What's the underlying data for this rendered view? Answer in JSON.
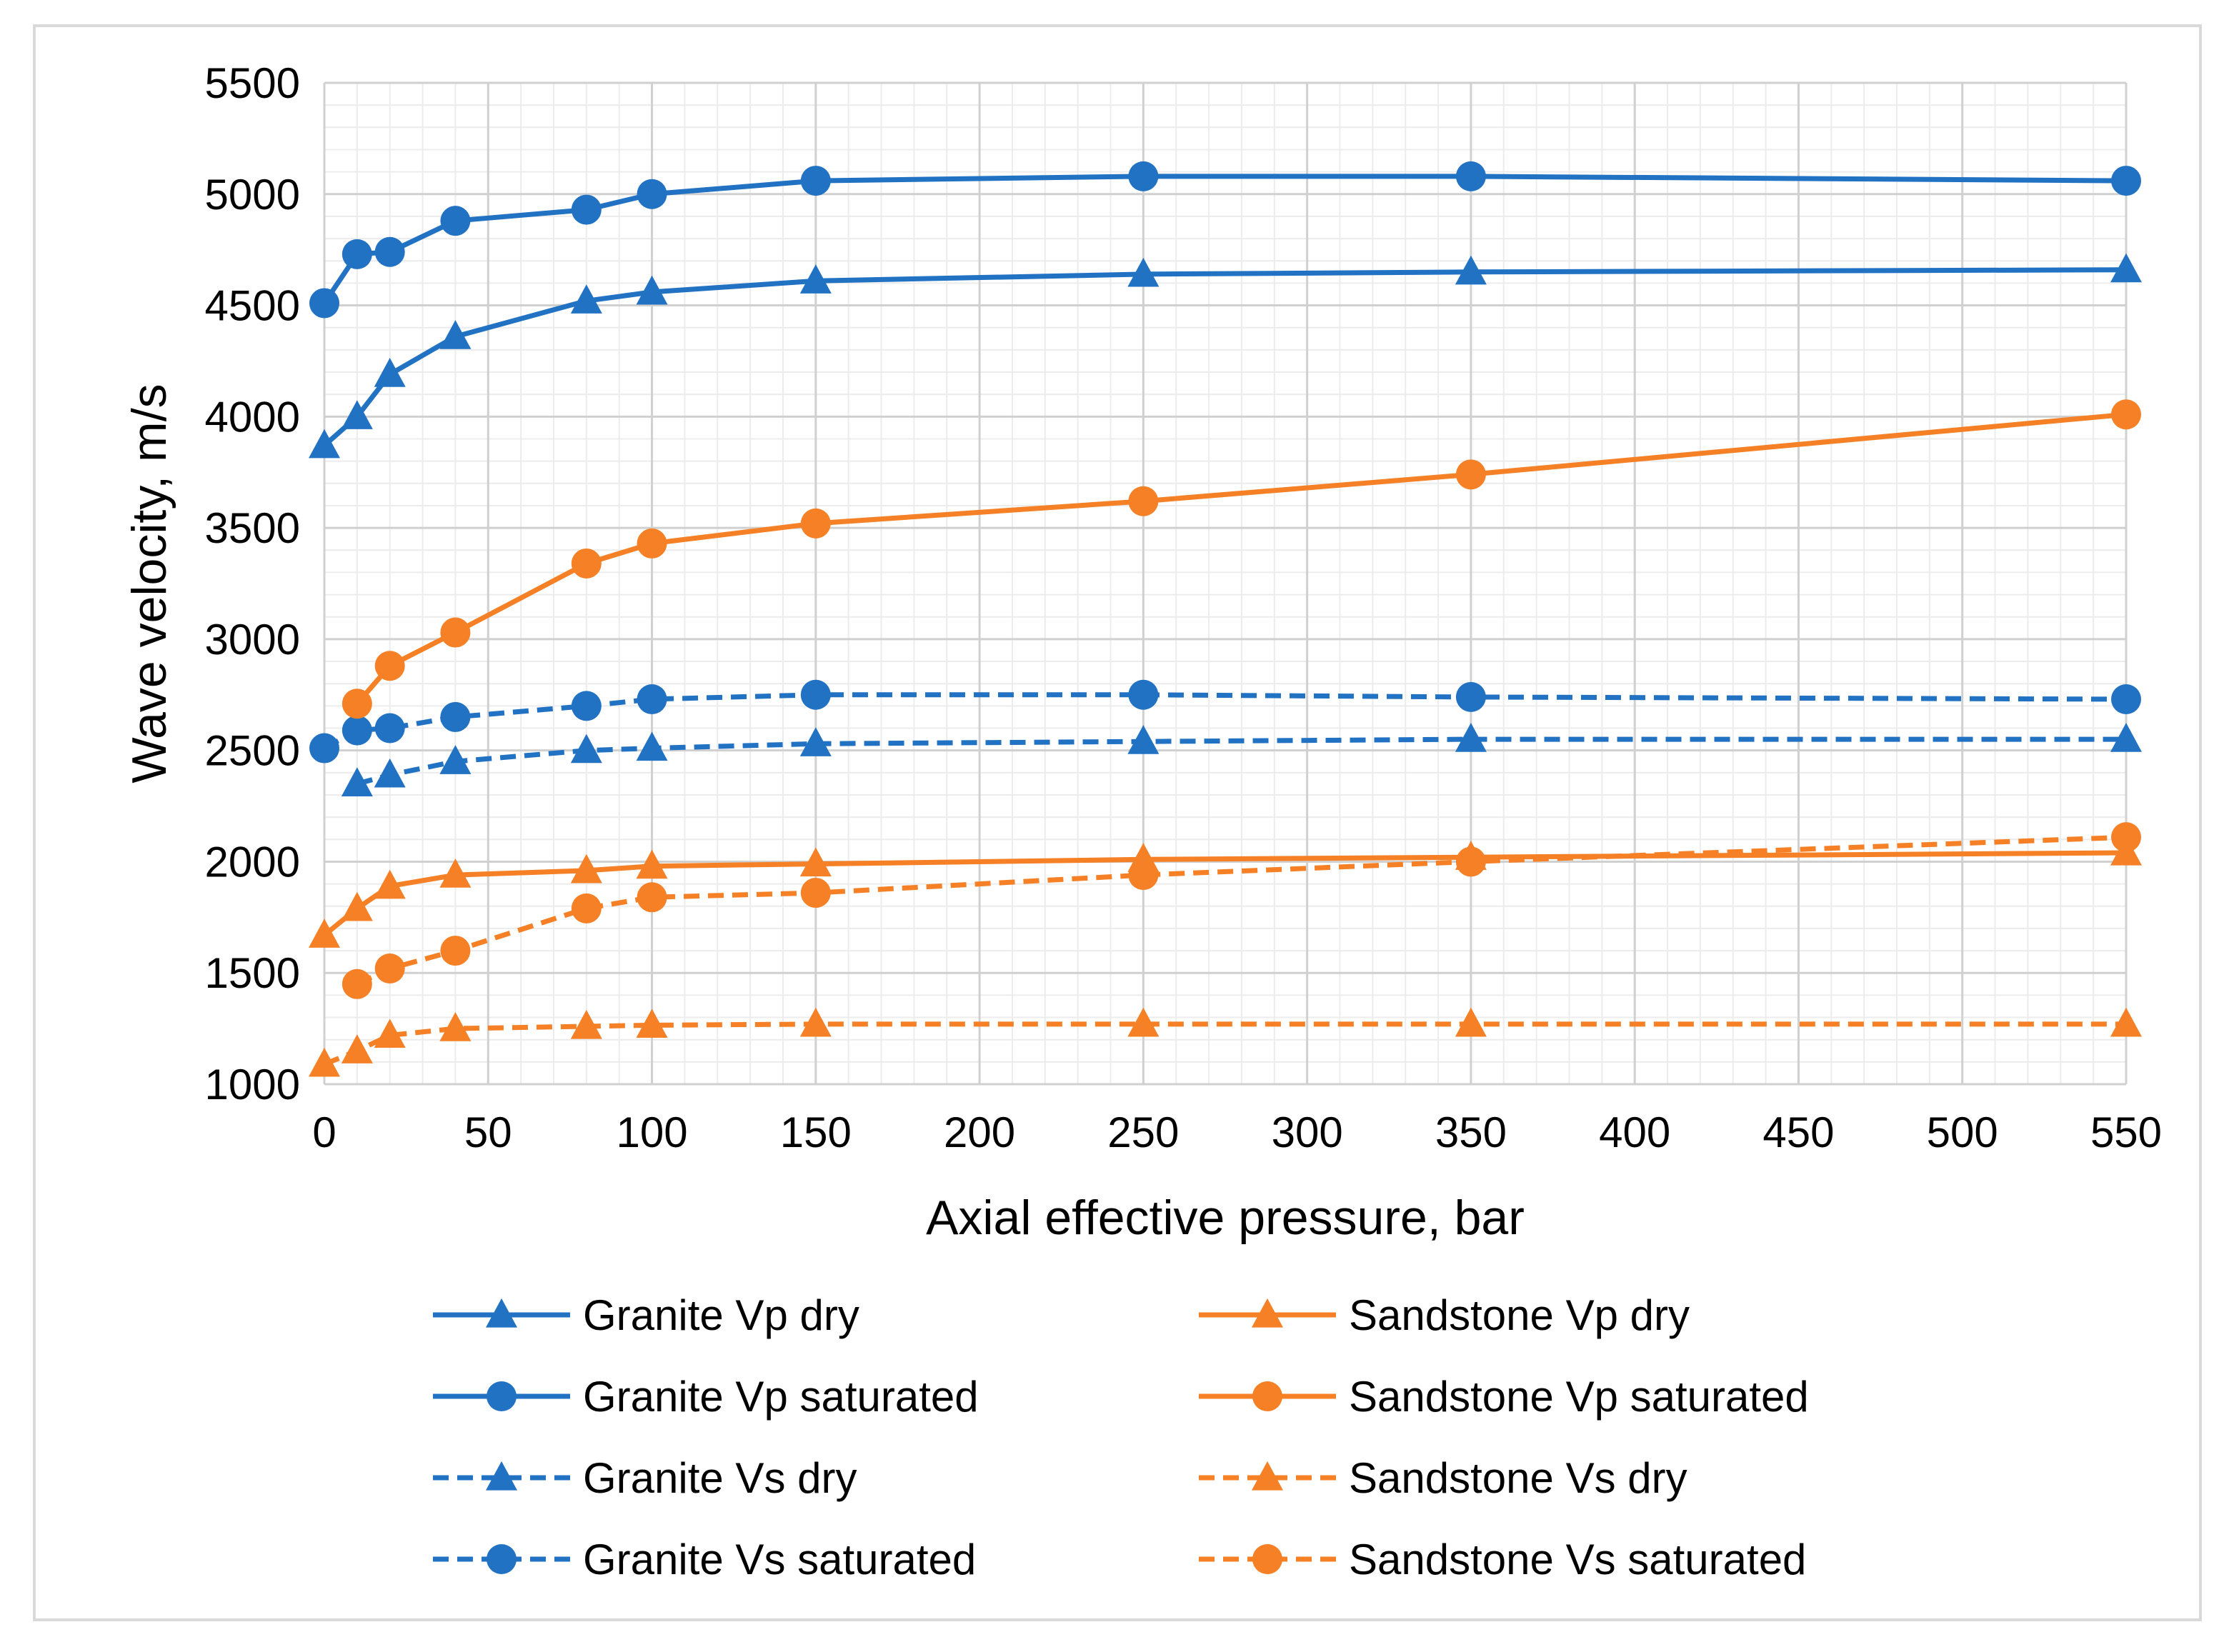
{
  "chart_data": {
    "type": "line",
    "title": "",
    "xlabel": "Axial effective pressure, bar",
    "ylabel": "Wave velocity, m/s",
    "xlim": [
      0,
      550
    ],
    "ylim": [
      1000,
      5500
    ],
    "x_ticks": [
      0,
      50,
      100,
      150,
      200,
      250,
      300,
      350,
      400,
      450,
      500,
      550
    ],
    "y_ticks": [
      1000,
      1500,
      2000,
      2500,
      3000,
      3500,
      4000,
      4500,
      5000,
      5500
    ],
    "grid": true,
    "legend_position": "bottom",
    "series": [
      {
        "name": "Granite Vp dry",
        "color": "#2272C4",
        "marker": "triangle",
        "dash": "solid",
        "points": [
          [
            0,
            3870
          ],
          [
            10,
            4000
          ],
          [
            20,
            4190
          ],
          [
            40,
            4360
          ],
          [
            80,
            4520
          ],
          [
            100,
            4560
          ],
          [
            150,
            4610
          ],
          [
            250,
            4640
          ],
          [
            350,
            4650
          ],
          [
            550,
            4660
          ]
        ]
      },
      {
        "name": "Granite Vp saturated",
        "color": "#2272C4",
        "marker": "circle",
        "dash": "solid",
        "points": [
          [
            0,
            4510
          ],
          [
            10,
            4730
          ],
          [
            20,
            4740
          ],
          [
            40,
            4880
          ],
          [
            80,
            4930
          ],
          [
            100,
            5000
          ],
          [
            150,
            5060
          ],
          [
            250,
            5080
          ],
          [
            350,
            5080
          ],
          [
            550,
            5060
          ]
        ]
      },
      {
        "name": "Granite Vs dry",
        "color": "#2272C4",
        "marker": "triangle",
        "dash": "dashed",
        "points": [
          [
            10,
            2350
          ],
          [
            20,
            2390
          ],
          [
            40,
            2450
          ],
          [
            80,
            2500
          ],
          [
            100,
            2510
          ],
          [
            150,
            2530
          ],
          [
            250,
            2540
          ],
          [
            350,
            2550
          ],
          [
            550,
            2550
          ]
        ]
      },
      {
        "name": "Granite Vs saturated",
        "color": "#2272C4",
        "marker": "circle",
        "dash": "dashed",
        "points": [
          [
            0,
            2510
          ],
          [
            10,
            2590
          ],
          [
            20,
            2600
          ],
          [
            40,
            2650
          ],
          [
            80,
            2700
          ],
          [
            100,
            2730
          ],
          [
            150,
            2750
          ],
          [
            250,
            2750
          ],
          [
            350,
            2740
          ],
          [
            550,
            2730
          ]
        ]
      },
      {
        "name": "Sandstone Vp dry",
        "color": "#F58025",
        "marker": "triangle",
        "dash": "solid",
        "points": [
          [
            0,
            1670
          ],
          [
            10,
            1790
          ],
          [
            20,
            1890
          ],
          [
            40,
            1940
          ],
          [
            80,
            1960
          ],
          [
            100,
            1980
          ],
          [
            150,
            1990
          ],
          [
            250,
            2010
          ],
          [
            350,
            2020
          ],
          [
            550,
            2040
          ]
        ]
      },
      {
        "name": "Sandstone Vp saturated",
        "color": "#F58025",
        "marker": "circle",
        "dash": "solid",
        "points": [
          [
            10,
            2710
          ],
          [
            20,
            2880
          ],
          [
            40,
            3030
          ],
          [
            80,
            3340
          ],
          [
            100,
            3430
          ],
          [
            150,
            3520
          ],
          [
            250,
            3620
          ],
          [
            350,
            3740
          ],
          [
            550,
            4010
          ]
        ]
      },
      {
        "name": "Sandstone Vs dry",
        "color": "#F58025",
        "marker": "triangle",
        "dash": "dashed",
        "points": [
          [
            0,
            1090
          ],
          [
            10,
            1150
          ],
          [
            20,
            1220
          ],
          [
            40,
            1250
          ],
          [
            80,
            1260
          ],
          [
            100,
            1265
          ],
          [
            150,
            1270
          ],
          [
            250,
            1270
          ],
          [
            350,
            1270
          ],
          [
            550,
            1270
          ]
        ]
      },
      {
        "name": "Sandstone Vs saturated",
        "color": "#F58025",
        "marker": "circle",
        "dash": "dashed",
        "points": [
          [
            10,
            1450
          ],
          [
            20,
            1520
          ],
          [
            40,
            1600
          ],
          [
            80,
            1790
          ],
          [
            100,
            1840
          ],
          [
            150,
            1860
          ],
          [
            250,
            1940
          ],
          [
            350,
            2000
          ],
          [
            550,
            2110
          ]
        ]
      }
    ]
  }
}
